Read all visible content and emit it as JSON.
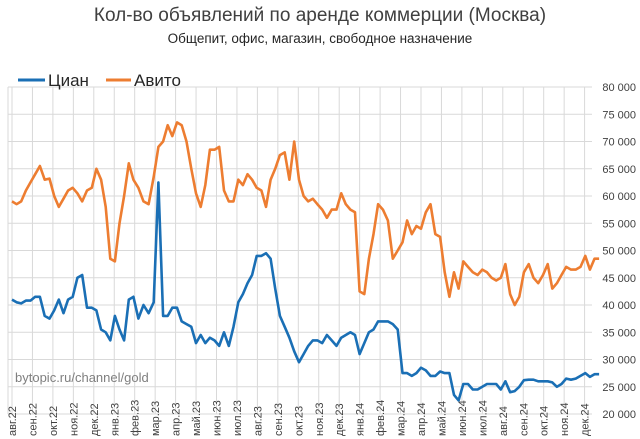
{
  "chart_data": {
    "type": "line",
    "title": "Кол-во объявлений по аренде коммерции (Москва)",
    "subtitle": "Общепит, офис, магазин, свободное назначение",
    "watermark": "bytopic.ru/channel/gold",
    "legend_placement": "top-left",
    "grid": true,
    "ylim": [
      20000,
      80000
    ],
    "y_axis_side": "right",
    "y_ticks": [
      "20 000",
      "25 000",
      "30 000",
      "35 000",
      "40 000",
      "45 000",
      "50 000",
      "55 000",
      "60 000",
      "65 000",
      "70 000",
      "75 000",
      "80 000"
    ],
    "x_ticks": [
      "авг.22",
      "сен.22",
      "окт.22",
      "ноя.22",
      "дек.22",
      "янв.23",
      "фев.23",
      "мар.23",
      "апр.23",
      "май.23",
      "июн.23",
      "июл.23",
      "авг.23",
      "сен.23",
      "окт.23",
      "ноя.23",
      "дек.23",
      "янв.24",
      "фев.24",
      "мар.24",
      "апр.24",
      "май.24",
      "июн.24",
      "июл.24",
      "авг.24",
      "сен.24",
      "окт.24",
      "ноя.24",
      "дек.24"
    ],
    "x": [
      "2022-08-01",
      "2022-08-08",
      "2022-08-15",
      "2022-08-22",
      "2022-08-29",
      "2022-09-05",
      "2022-09-12",
      "2022-09-19",
      "2022-09-26",
      "2022-10-03",
      "2022-10-10",
      "2022-10-17",
      "2022-10-24",
      "2022-10-31",
      "2022-11-07",
      "2022-11-14",
      "2022-11-21",
      "2022-11-28",
      "2022-12-05",
      "2022-12-12",
      "2022-12-19",
      "2022-12-26",
      "2023-01-02",
      "2023-01-09",
      "2023-01-16",
      "2023-01-23",
      "2023-01-30",
      "2023-02-06",
      "2023-02-13",
      "2023-02-20",
      "2023-02-27",
      "2023-03-06",
      "2023-03-13",
      "2023-03-20",
      "2023-03-27",
      "2023-04-03",
      "2023-04-10",
      "2023-04-17",
      "2023-04-24",
      "2023-05-01",
      "2023-05-08",
      "2023-05-15",
      "2023-05-22",
      "2023-05-29",
      "2023-06-05",
      "2023-06-12",
      "2023-06-19",
      "2023-06-26",
      "2023-07-03",
      "2023-07-10",
      "2023-07-17",
      "2023-07-24",
      "2023-07-31",
      "2023-08-07",
      "2023-08-14",
      "2023-08-21",
      "2023-08-28",
      "2023-09-04",
      "2023-09-11",
      "2023-09-18",
      "2023-09-25",
      "2023-10-02",
      "2023-10-09",
      "2023-10-16",
      "2023-10-23",
      "2023-10-30",
      "2023-11-06",
      "2023-11-13",
      "2023-11-20",
      "2023-11-27",
      "2023-12-04",
      "2023-12-11",
      "2023-12-18",
      "2023-12-25",
      "2024-01-01",
      "2024-01-08",
      "2024-01-15",
      "2024-01-22",
      "2024-01-29",
      "2024-02-05",
      "2024-02-12",
      "2024-02-19",
      "2024-02-26",
      "2024-03-04",
      "2024-03-11",
      "2024-03-18",
      "2024-03-25",
      "2024-04-01",
      "2024-04-08",
      "2024-04-15",
      "2024-04-22",
      "2024-04-29",
      "2024-05-06",
      "2024-05-13",
      "2024-05-20",
      "2024-05-27",
      "2024-06-03",
      "2024-06-10",
      "2024-06-17",
      "2024-06-24",
      "2024-07-01",
      "2024-07-08",
      "2024-07-15",
      "2024-07-22",
      "2024-07-29",
      "2024-08-05",
      "2024-08-12",
      "2024-08-19",
      "2024-08-26",
      "2024-09-02",
      "2024-09-09",
      "2024-09-16",
      "2024-09-23",
      "2024-09-30",
      "2024-10-07",
      "2024-10-14",
      "2024-10-21",
      "2024-10-28",
      "2024-11-04",
      "2024-11-11",
      "2024-11-18",
      "2024-11-25",
      "2024-12-02",
      "2024-12-09",
      "2024-12-16",
      "2024-12-23"
    ],
    "series": [
      {
        "name": "Циан",
        "color": "#1a6fb5",
        "values": [
          41000,
          40500,
          40300,
          40800,
          40800,
          41500,
          41500,
          38000,
          37500,
          39000,
          41000,
          38500,
          41000,
          41500,
          45000,
          45500,
          39500,
          39500,
          39000,
          35500,
          35000,
          33500,
          38000,
          35500,
          33500,
          41000,
          41500,
          37500,
          40000,
          38500,
          40500,
          62500,
          38000,
          38000,
          39500,
          39500,
          37000,
          36500,
          36000,
          33000,
          34500,
          33000,
          34000,
          33500,
          32500,
          35000,
          32500,
          36000,
          40500,
          42000,
          44000,
          45500,
          49000,
          49000,
          49500,
          48500,
          43000,
          38000,
          36000,
          34000,
          31500,
          29500,
          31000,
          32500,
          33500,
          33500,
          33000,
          34500,
          33500,
          32500,
          34000,
          34500,
          35000,
          34500,
          31000,
          33000,
          35000,
          35500,
          37000,
          37000,
          37000,
          36500,
          35500,
          27500,
          27500,
          27000,
          27500,
          28500,
          28000,
          27000,
          27000,
          27800,
          27500,
          27500,
          23500,
          22500,
          25500,
          25500,
          24500,
          24500,
          25000,
          25500,
          25500,
          25500,
          24500,
          26000,
          24000,
          24200,
          25000,
          26200,
          26300,
          26300,
          26000,
          26000,
          26000,
          25800,
          25000,
          25500,
          26500,
          26300,
          26500,
          27000,
          27500,
          26800,
          27300,
          27300
        ]
      },
      {
        "name": "Авито",
        "color": "#ed7d31",
        "values": [
          59000,
          58500,
          59000,
          61000,
          62500,
          64000,
          65500,
          63000,
          63200,
          60000,
          58000,
          59500,
          61000,
          61500,
          60500,
          59000,
          61000,
          61500,
          65000,
          63000,
          58000,
          48500,
          48000,
          55000,
          60000,
          66000,
          63000,
          61500,
          59000,
          58500,
          63500,
          69000,
          70000,
          73000,
          71000,
          73500,
          73000,
          70000,
          65000,
          60500,
          58000,
          62000,
          68500,
          68500,
          69000,
          61000,
          59000,
          59000,
          63000,
          62000,
          64000,
          63000,
          61500,
          61000,
          58000,
          63000,
          65000,
          67500,
          68000,
          63000,
          70000,
          63000,
          60000,
          59000,
          59500,
          58500,
          57500,
          56000,
          57500,
          57500,
          60500,
          58500,
          57500,
          57000,
          42500,
          42000,
          48500,
          53000,
          58500,
          57500,
          55500,
          48500,
          50000,
          51500,
          55500,
          53000,
          54500,
          54000,
          57000,
          58500,
          53000,
          52500,
          46000,
          41500,
          46000,
          43000,
          48000,
          47000,
          46000,
          45500,
          46500,
          46000,
          45000,
          44500,
          45000,
          47500,
          42000,
          40000,
          41500,
          46000,
          47500,
          45000,
          44000,
          45500,
          47500,
          43000,
          44000,
          45500,
          47000,
          46500,
          46500,
          47000,
          49000,
          46500,
          48500,
          48500
        ]
      }
    ]
  }
}
